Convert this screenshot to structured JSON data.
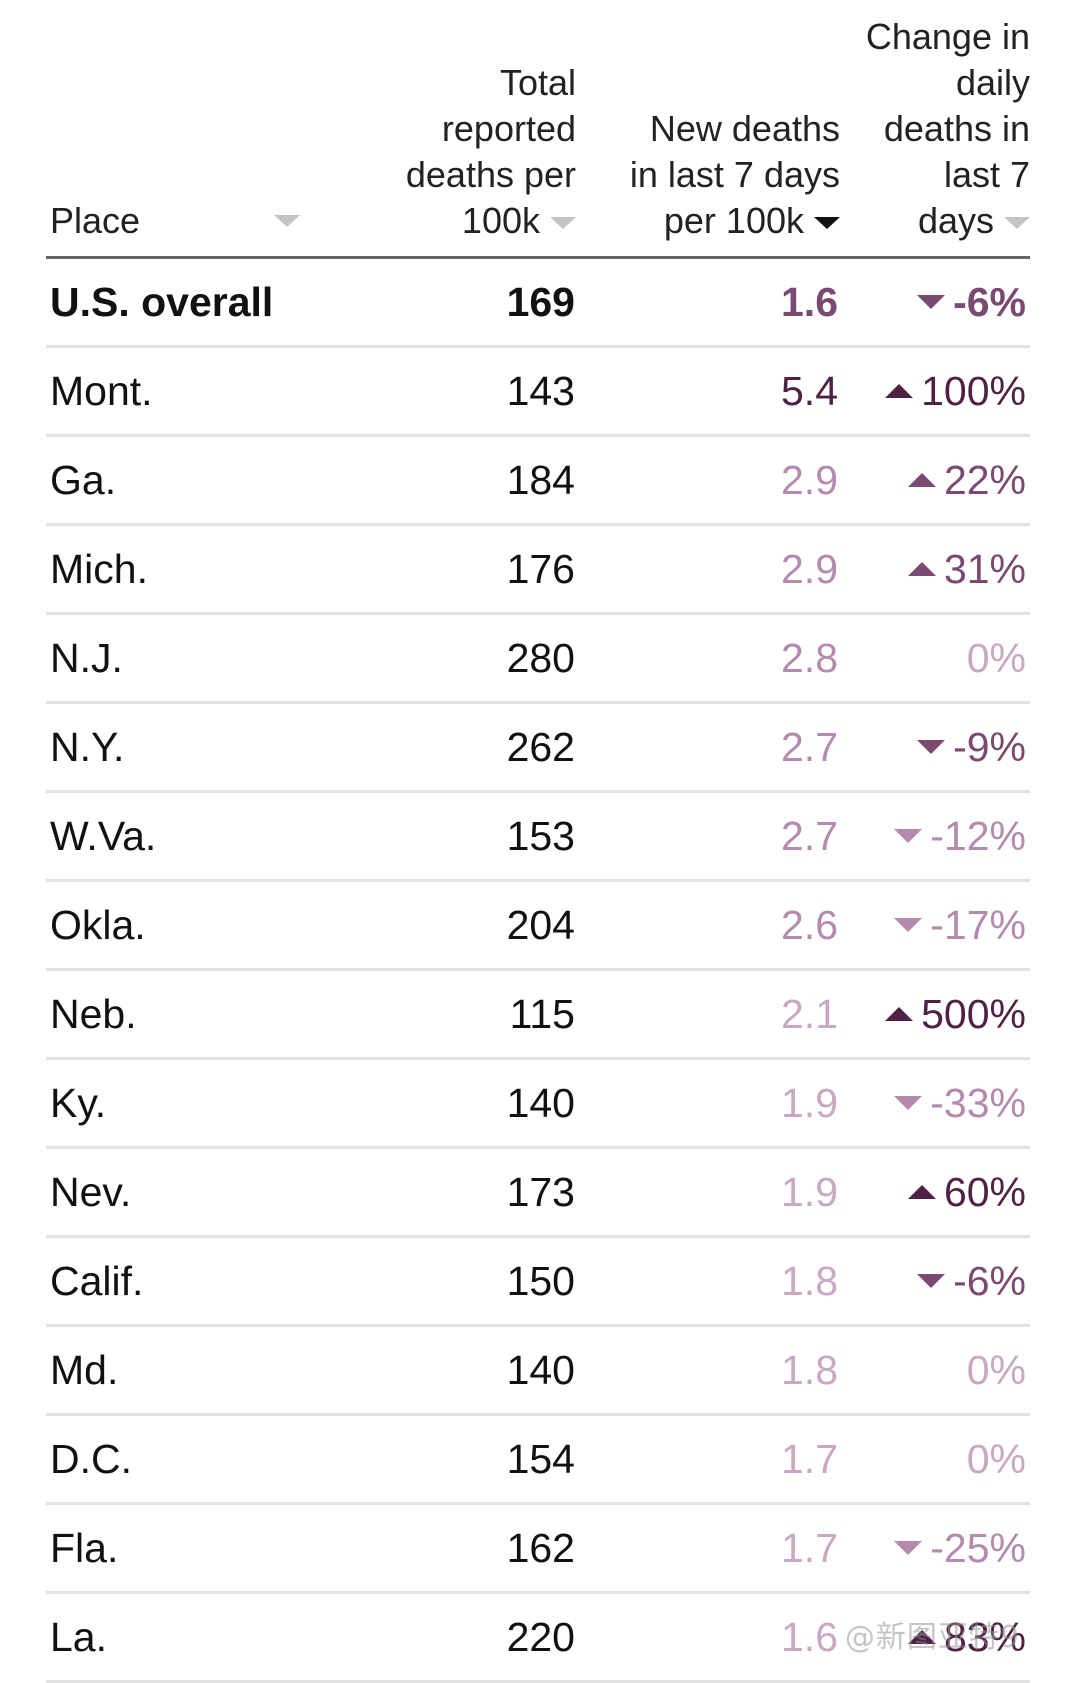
{
  "chart_data": {
    "type": "table",
    "columns": [
      {
        "key": "place",
        "label": "Place",
        "sort": "none"
      },
      {
        "key": "total",
        "label": "Total\nreported\ndeaths per\n100k",
        "sort": "none"
      },
      {
        "key": "new",
        "label": "New deaths\nin last 7 days\nper 100k",
        "sort": "active"
      },
      {
        "key": "change",
        "label": "Change in\ndaily\ndeaths in\nlast 7\ndays",
        "sort": "none"
      }
    ],
    "colors": {
      "bar_scale": [
        "#c9a8c3",
        "#b48aae",
        "#7a4a72",
        "#4e2145"
      ],
      "text": "#111111"
    },
    "rows": [
      {
        "place": "U.S. overall",
        "total": "169",
        "new": "1.6",
        "change": "-6%",
        "dir": "down",
        "bold": true
      },
      {
        "place": "Mont.",
        "total": "143",
        "new": "5.4",
        "change": "100%",
        "dir": "up"
      },
      {
        "place": "Ga.",
        "total": "184",
        "new": "2.9",
        "change": "22%",
        "dir": "up"
      },
      {
        "place": "Mich.",
        "total": "176",
        "new": "2.9",
        "change": "31%",
        "dir": "up"
      },
      {
        "place": "N.J.",
        "total": "280",
        "new": "2.8",
        "change": "0%",
        "dir": "none"
      },
      {
        "place": "N.Y.",
        "total": "262",
        "new": "2.7",
        "change": "-9%",
        "dir": "down"
      },
      {
        "place": "W.Va.",
        "total": "153",
        "new": "2.7",
        "change": "-12%",
        "dir": "down"
      },
      {
        "place": "Okla.",
        "total": "204",
        "new": "2.6",
        "change": "-17%",
        "dir": "down"
      },
      {
        "place": "Neb.",
        "total": "115",
        "new": "2.1",
        "change": "500%",
        "dir": "up"
      },
      {
        "place": "Ky.",
        "total": "140",
        "new": "1.9",
        "change": "-33%",
        "dir": "down"
      },
      {
        "place": "Nev.",
        "total": "173",
        "new": "1.9",
        "change": "60%",
        "dir": "up"
      },
      {
        "place": "Calif.",
        "total": "150",
        "new": "1.8",
        "change": "-6%",
        "dir": "down"
      },
      {
        "place": "Md.",
        "total": "140",
        "new": "1.8",
        "change": "0%",
        "dir": "none"
      },
      {
        "place": "D.C.",
        "total": "154",
        "new": "1.7",
        "change": "0%",
        "dir": "none"
      },
      {
        "place": "Fla.",
        "total": "162",
        "new": "1.7",
        "change": "-25%",
        "dir": "down"
      },
      {
        "place": "La.",
        "total": "220",
        "new": "1.6",
        "change": "83%",
        "dir": "up"
      }
    ]
  },
  "watermark": "@新图亚特9"
}
